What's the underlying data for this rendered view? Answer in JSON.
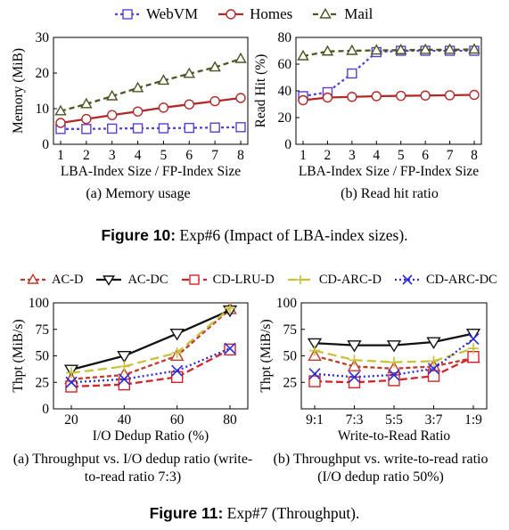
{
  "figure10": {
    "legend": [
      {
        "name": "WebVM",
        "color": "#5b3fd1",
        "marker": "square",
        "dash": "3,3"
      },
      {
        "name": "Homes",
        "color": "#b02a2a",
        "marker": "circle",
        "dash": ""
      },
      {
        "name": "Mail",
        "color": "#4a5520",
        "marker": "triangle",
        "dash": "6,4"
      }
    ],
    "caption_label": "Figure 10:",
    "caption_text": " Exp#6 (Impact of LBA-index sizes).",
    "subcaptions": [
      "(a) Memory usage",
      "(b) Read hit ratio"
    ]
  },
  "figure11": {
    "legend": [
      {
        "name": "AC-D",
        "color": "#c0392b",
        "marker": "triangle",
        "dash": "5,3"
      },
      {
        "name": "AC-DC",
        "color": "#111111",
        "marker": "triangle-down",
        "dash": ""
      },
      {
        "name": "CD-LRU-D",
        "color": "#d1242a",
        "marker": "square",
        "dash": "8,4"
      },
      {
        "name": "CD-ARC-D",
        "color": "#c8c23a",
        "marker": "plus",
        "dash": "10,5"
      },
      {
        "name": "CD-ARC-DC",
        "color": "#2b2bd6",
        "marker": "x",
        "dash": "2,3"
      }
    ],
    "caption_label": "Figure 11:",
    "caption_text": " Exp#7 (Throughput).",
    "subcaptions": [
      "(a) Throughput vs. I/O dedup ratio (write-to-read ratio 7:3)",
      "(b) Throughput vs. write-to-read ratio (I/O dedup ratio 50%)"
    ]
  },
  "chart_data": [
    {
      "type": "line",
      "title": "",
      "xlabel": "LBA-Index Size / FP-Index Size",
      "ylabel": "Memory (MiB)",
      "x": [
        1,
        2,
        3,
        4,
        5,
        6,
        7,
        8
      ],
      "xlim": [
        1,
        8
      ],
      "ylim": [
        0,
        30
      ],
      "yticks": [
        0,
        10,
        20,
        30
      ],
      "grid": false,
      "series": [
        {
          "name": "WebVM",
          "values": [
            4.3,
            4.3,
            4.4,
            4.5,
            4.5,
            4.6,
            4.7,
            4.8
          ]
        },
        {
          "name": "Homes",
          "values": [
            6.0,
            7.1,
            8.2,
            9.2,
            10.3,
            11.2,
            12.1,
            13.0
          ]
        },
        {
          "name": "Mail",
          "values": [
            9.3,
            11.3,
            13.5,
            15.8,
            17.9,
            19.8,
            21.6,
            24.0
          ]
        }
      ]
    },
    {
      "type": "line",
      "title": "",
      "xlabel": "LBA-Index Size / FP-Index Size",
      "ylabel": "Read Hit (%)",
      "x": [
        1,
        2,
        3,
        4,
        5,
        6,
        7,
        8
      ],
      "xlim": [
        1,
        8
      ],
      "ylim": [
        0,
        80
      ],
      "yticks": [
        0,
        20,
        40,
        60,
        80
      ],
      "grid": false,
      "series": [
        {
          "name": "WebVM",
          "values": [
            36,
            39,
            53,
            69,
            70,
            70,
            70,
            70
          ]
        },
        {
          "name": "Homes",
          "values": [
            33,
            35,
            35.5,
            36,
            36.3,
            36.5,
            36.7,
            37
          ]
        },
        {
          "name": "Mail",
          "values": [
            66,
            69.5,
            70,
            70.3,
            70.5,
            70.7,
            70.8,
            71
          ]
        }
      ]
    },
    {
      "type": "line",
      "title": "",
      "xlabel": "I/O Dedup Ratio (%)",
      "ylabel": "Thpt (MiB/s)",
      "categories": [
        "20",
        "40",
        "60",
        "80"
      ],
      "ylim": [
        0,
        100
      ],
      "yticks": [
        0,
        25,
        50,
        75,
        100
      ],
      "grid": false,
      "series": [
        {
          "name": "AC-D",
          "values": [
            28,
            32,
            50,
            94
          ]
        },
        {
          "name": "AC-DC",
          "values": [
            37,
            50,
            71,
            93
          ]
        },
        {
          "name": "CD-LRU-D",
          "values": [
            21,
            23,
            30,
            56
          ]
        },
        {
          "name": "CD-ARC-D",
          "values": [
            34,
            40,
            53,
            95
          ]
        },
        {
          "name": "CD-ARC-DC",
          "values": [
            25,
            28,
            36,
            57
          ]
        }
      ]
    },
    {
      "type": "line",
      "title": "",
      "xlabel": "Write-to-Read Ratio",
      "ylabel": "Thpt (MiB/s)",
      "categories": [
        "9:1",
        "7:3",
        "5:5",
        "3:7",
        "1:9"
      ],
      "ylim": [
        0,
        100
      ],
      "yticks": [
        25,
        50,
        75,
        100
      ],
      "grid": false,
      "series": [
        {
          "name": "AC-D",
          "values": [
            50,
            40,
            38,
            40,
            48
          ]
        },
        {
          "name": "AC-DC",
          "values": [
            62,
            60,
            60,
            63,
            71
          ]
        },
        {
          "name": "CD-LRU-D",
          "values": [
            26,
            25,
            27,
            31,
            49
          ]
        },
        {
          "name": "CD-ARC-D",
          "values": [
            55,
            46,
            44,
            45,
            57
          ]
        },
        {
          "name": "CD-ARC-DC",
          "values": [
            33,
            30,
            32,
            38,
            66
          ]
        }
      ]
    }
  ]
}
